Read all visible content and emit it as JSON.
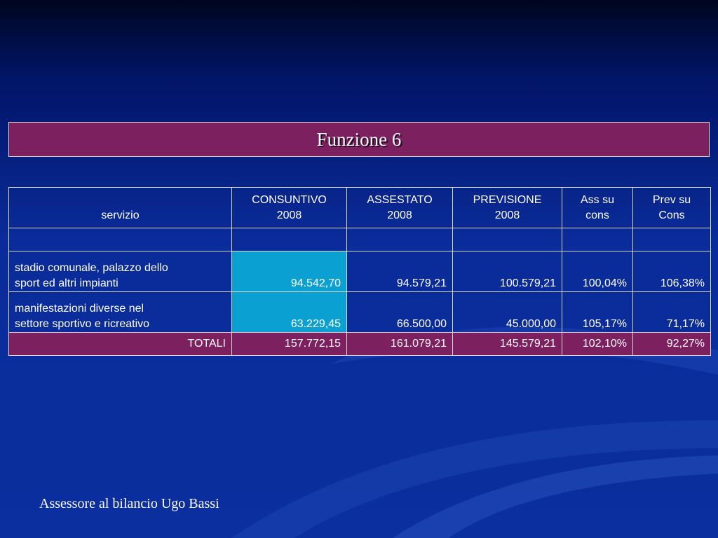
{
  "slide": {
    "title": "Funzione 6",
    "footer": "Assessore al bilancio Ugo Bassi"
  },
  "table": {
    "headers": [
      {
        "line1": "servizio",
        "line2": ""
      },
      {
        "line1": "CONSUNTIVO",
        "line2": "2008"
      },
      {
        "line1": "ASSESTATO",
        "line2": "2008"
      },
      {
        "line1": "PREVISIONE",
        "line2": "2008"
      },
      {
        "line1": "Ass su",
        "line2": "cons"
      },
      {
        "line1": "Prev su",
        "line2": "Cons"
      }
    ],
    "rows": [
      {
        "servizio_line1": "stadio comunale, palazzo dello",
        "servizio_line2": "sport ed altri impianti",
        "consuntivo": "94.542,70",
        "assestato": "94.579,21",
        "previsione": "100.579,21",
        "ass_su_cons": "100,04%",
        "prev_su_cons": "106,38%"
      },
      {
        "servizio_line1": "manifestazioni diverse nel",
        "servizio_line2": "settore sportivo e ricreativo",
        "consuntivo": "63.229,45",
        "assestato": "66.500,00",
        "previsione": "45.000,00",
        "ass_su_cons": "105,17%",
        "prev_su_cons": "71,17%"
      }
    ],
    "totals": {
      "label": "TOTALI",
      "consuntivo": "157.772,15",
      "assestato": "161.079,21",
      "previsione": "145.579,21",
      "ass_su_cons": "102,10%",
      "prev_su_cons": "92,27%"
    }
  },
  "colors": {
    "background": "#0b2f9e",
    "title_fill": "#7c2060",
    "highlight_cell": "#0aa0d2",
    "text": "#ffffff"
  }
}
